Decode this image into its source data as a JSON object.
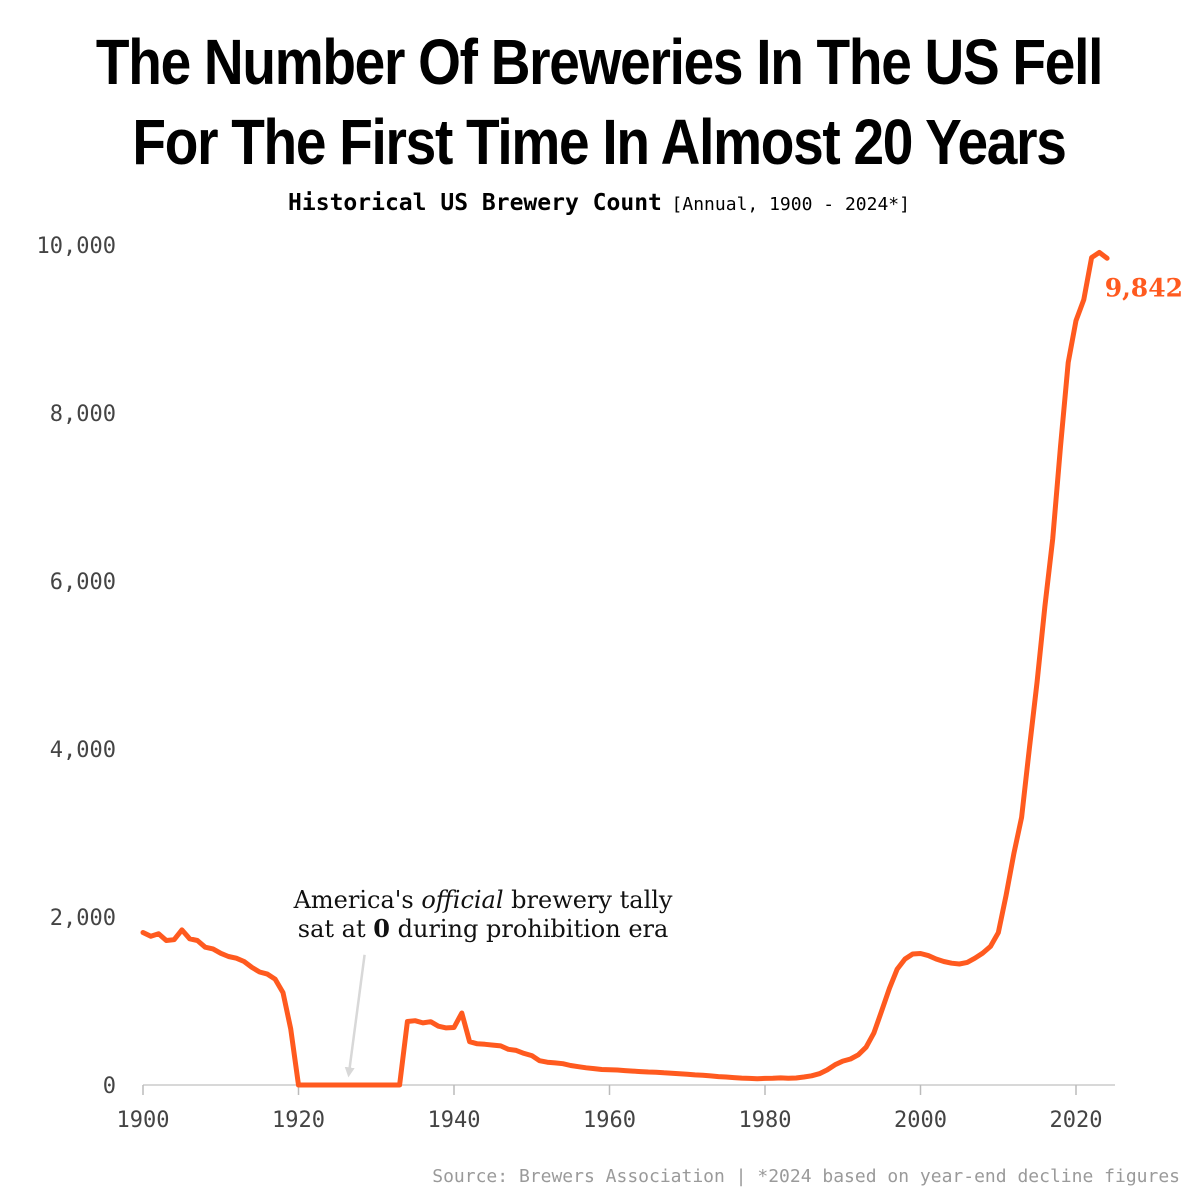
{
  "title_lines": [
    "The Number Of Breweries In The US Fell",
    "For The First Time In Almost 20 Years"
  ],
  "subtitle": {
    "main": "Historical US Brewery Count",
    "range": "[Annual, 1900 - 2024*]"
  },
  "source": "Source: Brewers Association | *2024 based on year-end decline figures",
  "chart_data": {
    "type": "line",
    "title": "The Number Of Breweries In The US Fell For The First Time In Almost 20 Years",
    "subtitle": "Historical US Brewery Count [Annual, 1900 - 2024*]",
    "xlabel": "",
    "ylabel": "",
    "xlim": [
      1900,
      2025
    ],
    "ylim": [
      0,
      10000
    ],
    "x_ticks": [
      1900,
      1920,
      1940,
      1960,
      1980,
      2000,
      2020
    ],
    "x_tick_labels": [
      "1900",
      "1920",
      "1940",
      "1960",
      "1980",
      "2000",
      "2020"
    ],
    "y_ticks": [
      0,
      2000,
      4000,
      6000,
      8000,
      10000
    ],
    "y_tick_labels": [
      "0",
      "2,000",
      "4,000",
      "6,000",
      "8,000",
      "10,000"
    ],
    "grid": false,
    "line_color": "#FF5A1F",
    "end_label": "9,842",
    "annotation": {
      "line1": "America's official brewery tally",
      "line2_pre": "sat at ",
      "line2_bold": "0",
      "line2_post": " during prohibition era",
      "arrow_to": [
        1926.5,
        150
      ],
      "arrow_from": [
        1928.5,
        1550
      ]
    },
    "series": [
      {
        "values": [
          [
            1900,
            1816
          ],
          [
            1901,
            1770
          ],
          [
            1902,
            1800
          ],
          [
            1903,
            1720
          ],
          [
            1904,
            1730
          ],
          [
            1905,
            1847
          ],
          [
            1906,
            1740
          ],
          [
            1907,
            1720
          ],
          [
            1908,
            1640
          ],
          [
            1909,
            1620
          ],
          [
            1910,
            1568
          ],
          [
            1911,
            1530
          ],
          [
            1912,
            1510
          ],
          [
            1913,
            1470
          ],
          [
            1914,
            1400
          ],
          [
            1915,
            1345
          ],
          [
            1916,
            1320
          ],
          [
            1917,
            1260
          ],
          [
            1918,
            1100
          ],
          [
            1919,
            669
          ],
          [
            1920,
            0
          ],
          [
            1921,
            0
          ],
          [
            1922,
            0
          ],
          [
            1923,
            0
          ],
          [
            1924,
            0
          ],
          [
            1925,
            0
          ],
          [
            1926,
            0
          ],
          [
            1927,
            0
          ],
          [
            1928,
            0
          ],
          [
            1929,
            0
          ],
          [
            1930,
            0
          ],
          [
            1931,
            0
          ],
          [
            1932,
            0
          ],
          [
            1933,
            0
          ],
          [
            1934,
            756
          ],
          [
            1935,
            766
          ],
          [
            1936,
            739
          ],
          [
            1937,
            754
          ],
          [
            1938,
            700
          ],
          [
            1939,
            680
          ],
          [
            1940,
            684
          ],
          [
            1941,
            857
          ],
          [
            1942,
            515
          ],
          [
            1943,
            491
          ],
          [
            1944,
            485
          ],
          [
            1945,
            475
          ],
          [
            1946,
            466
          ],
          [
            1947,
            425
          ],
          [
            1948,
            412
          ],
          [
            1949,
            376
          ],
          [
            1950,
            350
          ],
          [
            1951,
            289
          ],
          [
            1952,
            272
          ],
          [
            1953,
            263
          ],
          [
            1954,
            254
          ],
          [
            1955,
            232
          ],
          [
            1956,
            218
          ],
          [
            1957,
            205
          ],
          [
            1958,
            195
          ],
          [
            1959,
            185
          ],
          [
            1960,
            181
          ],
          [
            1961,
            178
          ],
          [
            1962,
            172
          ],
          [
            1963,
            166
          ],
          [
            1964,
            160
          ],
          [
            1965,
            155
          ],
          [
            1966,
            152
          ],
          [
            1967,
            145
          ],
          [
            1968,
            140
          ],
          [
            1969,
            135
          ],
          [
            1970,
            129
          ],
          [
            1971,
            120
          ],
          [
            1972,
            115
          ],
          [
            1973,
            108
          ],
          [
            1974,
            100
          ],
          [
            1975,
            95
          ],
          [
            1976,
            88
          ],
          [
            1977,
            82
          ],
          [
            1978,
            78
          ],
          [
            1979,
            75
          ],
          [
            1980,
            78
          ],
          [
            1981,
            80
          ],
          [
            1982,
            85
          ],
          [
            1983,
            80
          ],
          [
            1984,
            83
          ],
          [
            1985,
            95
          ],
          [
            1986,
            110
          ],
          [
            1987,
            135
          ],
          [
            1988,
            180
          ],
          [
            1989,
            240
          ],
          [
            1990,
            284
          ],
          [
            1991,
            310
          ],
          [
            1992,
            360
          ],
          [
            1993,
            450
          ],
          [
            1994,
            620
          ],
          [
            1995,
            880
          ],
          [
            1996,
            1150
          ],
          [
            1997,
            1380
          ],
          [
            1998,
            1500
          ],
          [
            1999,
            1560
          ],
          [
            2000,
            1566
          ],
          [
            2001,
            1540
          ],
          [
            2002,
            1500
          ],
          [
            2003,
            1470
          ],
          [
            2004,
            1450
          ],
          [
            2005,
            1440
          ],
          [
            2006,
            1460
          ],
          [
            2007,
            1510
          ],
          [
            2008,
            1570
          ],
          [
            2009,
            1650
          ],
          [
            2010,
            1813
          ],
          [
            2011,
            2252
          ],
          [
            2012,
            2751
          ],
          [
            2013,
            3186
          ],
          [
            2014,
            4000
          ],
          [
            2015,
            4800
          ],
          [
            2016,
            5700
          ],
          [
            2017,
            6500
          ],
          [
            2018,
            7600
          ],
          [
            2019,
            8600
          ],
          [
            2020,
            9100
          ],
          [
            2021,
            9350
          ],
          [
            2022,
            9850
          ],
          [
            2023,
            9912
          ],
          [
            2024,
            9842
          ]
        ]
      }
    ]
  }
}
